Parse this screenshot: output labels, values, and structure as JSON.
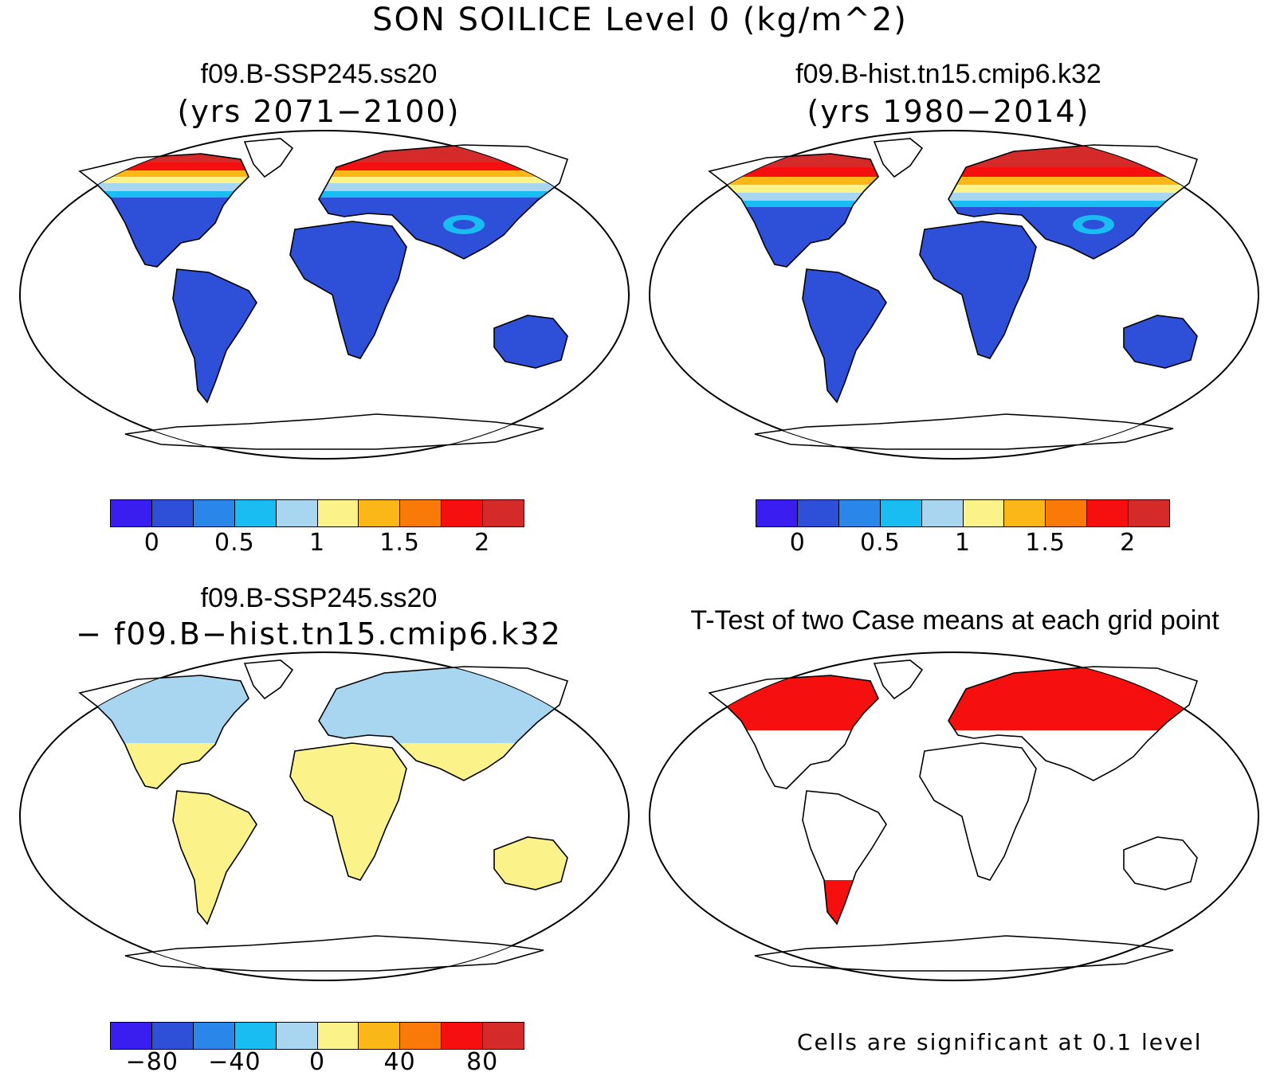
{
  "title": "SON SOILICE Level 0 (kg/m^2)",
  "panels": [
    {
      "title": "f09.B-SSP245.ss20",
      "subtitle": "(yrs 2071−2100)"
    },
    {
      "title": "f09.B-hist.tn15.cmip6.k32",
      "subtitle": "(yrs 1980−2014)"
    },
    {
      "title": "f09.B-SSP245.ss20",
      "subtitle": "− f09.B−hist.tn15.cmip6.k32"
    },
    {
      "title": "T-Test of two Case means at each grid point",
      "subtitle": ""
    }
  ],
  "colorbar_colors": [
    "#3a1ef0",
    "#2e4fd8",
    "#2a86e8",
    "#19bdf2",
    "#a8d6f0",
    "#fbf38a",
    "#fbb617",
    "#fa7a09",
    "#f50f0f",
    "#d42a2a"
  ],
  "colorbar_abs_ticks": [
    "0",
    "0.5",
    "1",
    "1.5",
    "2"
  ],
  "colorbar_diff_ticks": [
    "−80",
    "−40",
    "0",
    "40",
    "80"
  ],
  "significance_note": "Cells are significant at 0.1 level",
  "significance_color": "#f50f0f"
}
